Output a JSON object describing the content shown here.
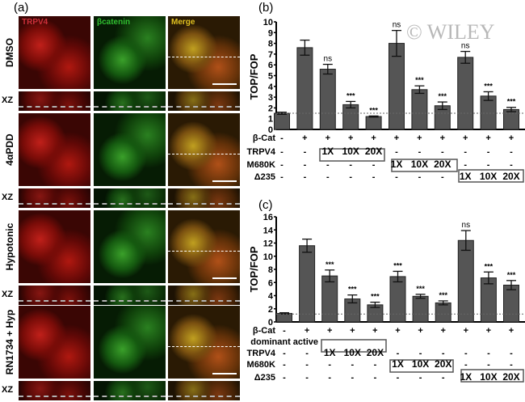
{
  "panel_a": {
    "label": "(a)",
    "columns": [
      "TRPV4",
      "βcatenin",
      "Merge"
    ],
    "column_colors": [
      "#d0303a",
      "#30c030",
      "#e0c020"
    ],
    "rows": [
      "DMSO",
      "4αPDD",
      "Hypotonic",
      "RN1734 + Hyp"
    ],
    "xz_label": "XZ"
  },
  "watermark": "© WILEY",
  "chart_data": [
    {
      "panel": "(b)",
      "type": "bar",
      "ylabel": "TOP/FOP",
      "ylim": [
        0,
        10
      ],
      "yticks": [
        "0",
        "1",
        "2",
        "3",
        "4",
        "5",
        "6",
        "7",
        "8",
        "9",
        "10"
      ],
      "values": [
        1.5,
        7.6,
        5.6,
        2.3,
        1.2,
        8.0,
        3.7,
        2.2,
        6.7,
        3.1,
        1.85
      ],
      "errors": [
        0.1,
        0.7,
        0.45,
        0.3,
        0.05,
        1.2,
        0.35,
        0.35,
        0.55,
        0.4,
        0.2
      ],
      "significance": [
        "",
        "",
        "ns",
        "***",
        "***",
        "ns",
        "***",
        "***",
        "ns",
        "***",
        "***"
      ],
      "reference_line": 1.5,
      "conditions": [
        {
          "label": "β-Cat",
          "signs": [
            "-",
            "+",
            "+",
            "+",
            "+",
            "+",
            "+",
            "+",
            "+",
            "+",
            "+"
          ]
        },
        {
          "label": "TRPV4",
          "signs": [
            "-",
            "-",
            "1X",
            "10X",
            "20X",
            "-",
            "-",
            "-",
            "-",
            "-",
            "-"
          ]
        },
        {
          "label": "M680K",
          "signs": [
            "-",
            "-",
            "-",
            "-",
            "-",
            "1X",
            "10X",
            "20X",
            "-",
            "-",
            "-"
          ]
        },
        {
          "label": "Δ235",
          "signs": [
            "-",
            "-",
            "-",
            "-",
            "-",
            "-",
            "-",
            "-",
            "1X",
            "10X",
            "20X"
          ]
        }
      ]
    },
    {
      "panel": "(c)",
      "type": "bar",
      "ylabel": "TOP/FOP",
      "ylim": [
        0,
        16
      ],
      "yticks": [
        "0",
        "2",
        "4",
        "6",
        "8",
        "10",
        "12",
        "14",
        "16"
      ],
      "values": [
        1.3,
        11.6,
        7.0,
        3.5,
        2.6,
        6.9,
        3.9,
        2.9,
        12.4,
        6.7,
        5.6
      ],
      "errors": [
        0.1,
        1.0,
        0.9,
        0.6,
        0.4,
        0.8,
        0.3,
        0.3,
        1.5,
        0.9,
        0.7
      ],
      "significance": [
        "",
        "",
        "***",
        "***",
        "***",
        "***",
        "***",
        "***",
        "ns",
        "***",
        "***"
      ],
      "reference_line": 1.2,
      "conditions": [
        {
          "label": "β-Cat",
          "signs": [
            "-",
            "+",
            "+",
            "+",
            "+",
            "+",
            "+",
            "+",
            "+",
            "+",
            "+"
          ]
        },
        {
          "label": "dominant active",
          "signs": []
        },
        {
          "label": "TRPV4",
          "signs": [
            "-",
            "-",
            "1X",
            "10X",
            "20X",
            "-",
            "-",
            "-",
            "-",
            "-",
            "-"
          ]
        },
        {
          "label": "M680K",
          "signs": [
            "-",
            "-",
            "-",
            "-",
            "-",
            "1X",
            "10X",
            "20X",
            "-",
            "-",
            "-"
          ]
        },
        {
          "label": "Δ235",
          "signs": [
            "-",
            "-",
            "-",
            "-",
            "-",
            "-",
            "-",
            "-",
            "1X",
            "10X",
            "20X"
          ]
        }
      ]
    }
  ]
}
